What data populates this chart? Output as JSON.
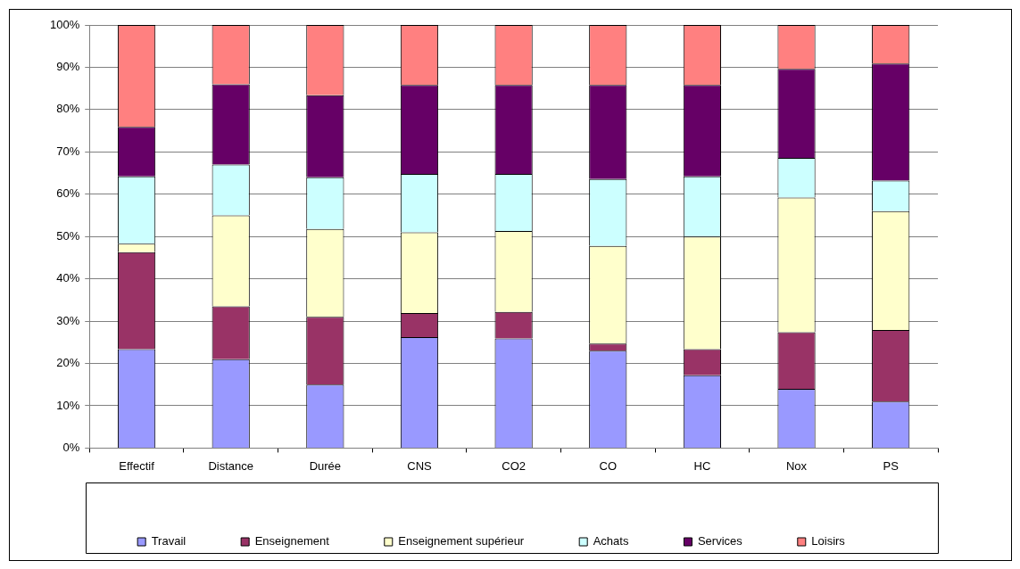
{
  "chart_data": {
    "type": "bar",
    "stacked": true,
    "categories": [
      "Effectif",
      "Distance",
      "Durée",
      "CNS",
      "CO2",
      "CO",
      "HC",
      "Nox",
      "PS"
    ],
    "series": [
      {
        "name": "Travail",
        "color": "#9999ff",
        "values": [
          23.4,
          21,
          15,
          26.2,
          25.9,
          23,
          17.2,
          14,
          11
        ]
      },
      {
        "name": "Enseignement",
        "color": "#993366",
        "values": [
          22.9,
          12.5,
          16,
          5.7,
          6.3,
          1.7,
          6.2,
          13.4,
          16.9
        ]
      },
      {
        "name": "Enseignement supérieur",
        "color": "#ffffcc",
        "values": [
          2,
          21.5,
          20.8,
          19.1,
          19.1,
          23.1,
          26.6,
          31.8,
          28.1
        ]
      },
      {
        "name": "Achats",
        "color": "#ccffff",
        "values": [
          15.9,
          12,
          12.2,
          13.8,
          13.5,
          15.8,
          14.2,
          9.4,
          7.2
        ]
      },
      {
        "name": "Services",
        "color": "#660066",
        "values": [
          11.7,
          19,
          19.4,
          21,
          21,
          22.2,
          21.6,
          21,
          27.7
        ]
      },
      {
        "name": "Loisirs",
        "color": "#ff8080",
        "values": [
          24.1,
          14,
          16.6,
          14.2,
          14.2,
          14.2,
          14.2,
          10.4,
          9.1
        ]
      }
    ],
    "ylim": [
      0,
      100
    ],
    "yticks": [
      {
        "value": 0,
        "label": "0%"
      },
      {
        "value": 10,
        "label": "10%"
      },
      {
        "value": 20,
        "label": "20%"
      },
      {
        "value": 30,
        "label": "30%"
      },
      {
        "value": 40,
        "label": "40%"
      },
      {
        "value": 50,
        "label": "50%"
      },
      {
        "value": 60,
        "label": "60%"
      },
      {
        "value": 70,
        "label": "70%"
      },
      {
        "value": 80,
        "label": "80%"
      },
      {
        "value": 90,
        "label": "90%"
      },
      {
        "value": 100,
        "label": "100%"
      }
    ],
    "grid": "y",
    "legend": "bottom"
  }
}
